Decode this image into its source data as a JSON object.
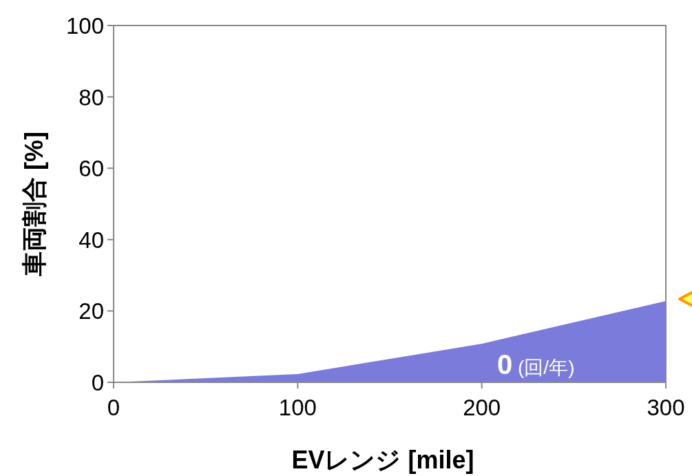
{
  "chart_data": {
    "type": "area",
    "xlabel": "EVレンジ [mile]",
    "ylabel": "車両割合 [%]",
    "x": [
      0,
      100,
      200,
      300
    ],
    "series": [
      {
        "color": "#7b7bdc",
        "values": [
          0,
          2.3,
          10.8,
          22.8
        ]
      }
    ],
    "xlim": [
      0,
      300
    ],
    "ylim": [
      0,
      100
    ],
    "xticks": [
      0,
      100,
      200,
      300
    ],
    "yticks": [
      0,
      20,
      40,
      60,
      80,
      100
    ],
    "grid": false,
    "annotations": [
      "**0** (回/年)"
    ]
  }
}
